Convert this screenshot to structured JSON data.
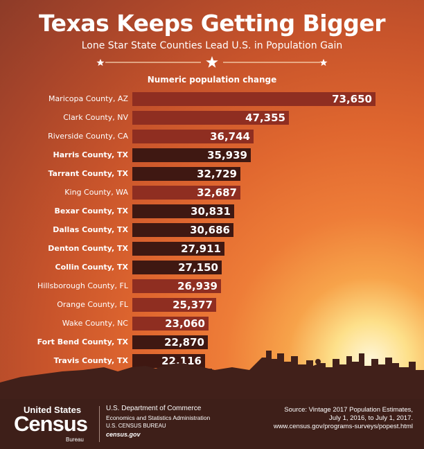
{
  "header": {
    "title": "Texas Keeps Getting Bigger",
    "subtitle": "Lone Star State Counties Lead U.S. in Population Gain"
  },
  "colors": {
    "bar_texas": "#3f1812",
    "bar_other": "#8f2e21",
    "footer_bg": "#3e1f19",
    "skyline": "#41201a"
  },
  "chart_data": {
    "type": "bar",
    "orientation": "horizontal",
    "title": "Numeric population change",
    "categories": [
      "Maricopa County, AZ",
      "Clark County, NV",
      "Riverside County, CA",
      "Harris County, TX",
      "Tarrant County, TX",
      "King County, WA",
      "Bexar County, TX",
      "Dallas County, TX",
      "Denton County, TX",
      "Collin County, TX",
      "Hillsborough County, FL",
      "Orange County, FL",
      "Wake County, NC",
      "Fort Bend County, TX",
      "Travis County, TX"
    ],
    "values": [
      73650,
      47355,
      36744,
      35939,
      32729,
      32687,
      30831,
      30686,
      27911,
      27150,
      26939,
      25377,
      23060,
      22870,
      22116
    ],
    "value_labels": [
      "73,650",
      "47,355",
      "36,744",
      "35,939",
      "32,729",
      "32,687",
      "30,831",
      "30,686",
      "27,911",
      "27,150",
      "26,939",
      "25,377",
      "23,060",
      "22,870",
      "22,116"
    ],
    "highlight": [
      false,
      false,
      false,
      true,
      true,
      false,
      true,
      true,
      true,
      true,
      false,
      false,
      false,
      true,
      true
    ],
    "grid": false,
    "legend": "none"
  },
  "footer": {
    "logo_top": "United States",
    "logo_main": "Census",
    "logo_bottom": "Bureau",
    "dept_line1": "U.S. Department of Commerce",
    "dept_line2": "Economics and Statistics Administration",
    "dept_line3": "U.S. CENSUS BUREAU",
    "dept_line4": "census.gov",
    "source_line1": "Source: Vintage 2017 Population Estimates,",
    "source_line2": "July 1, 2016, to July 1, 2017.",
    "source_line3": "www.census.gov/programs-surveys/popest.html"
  }
}
